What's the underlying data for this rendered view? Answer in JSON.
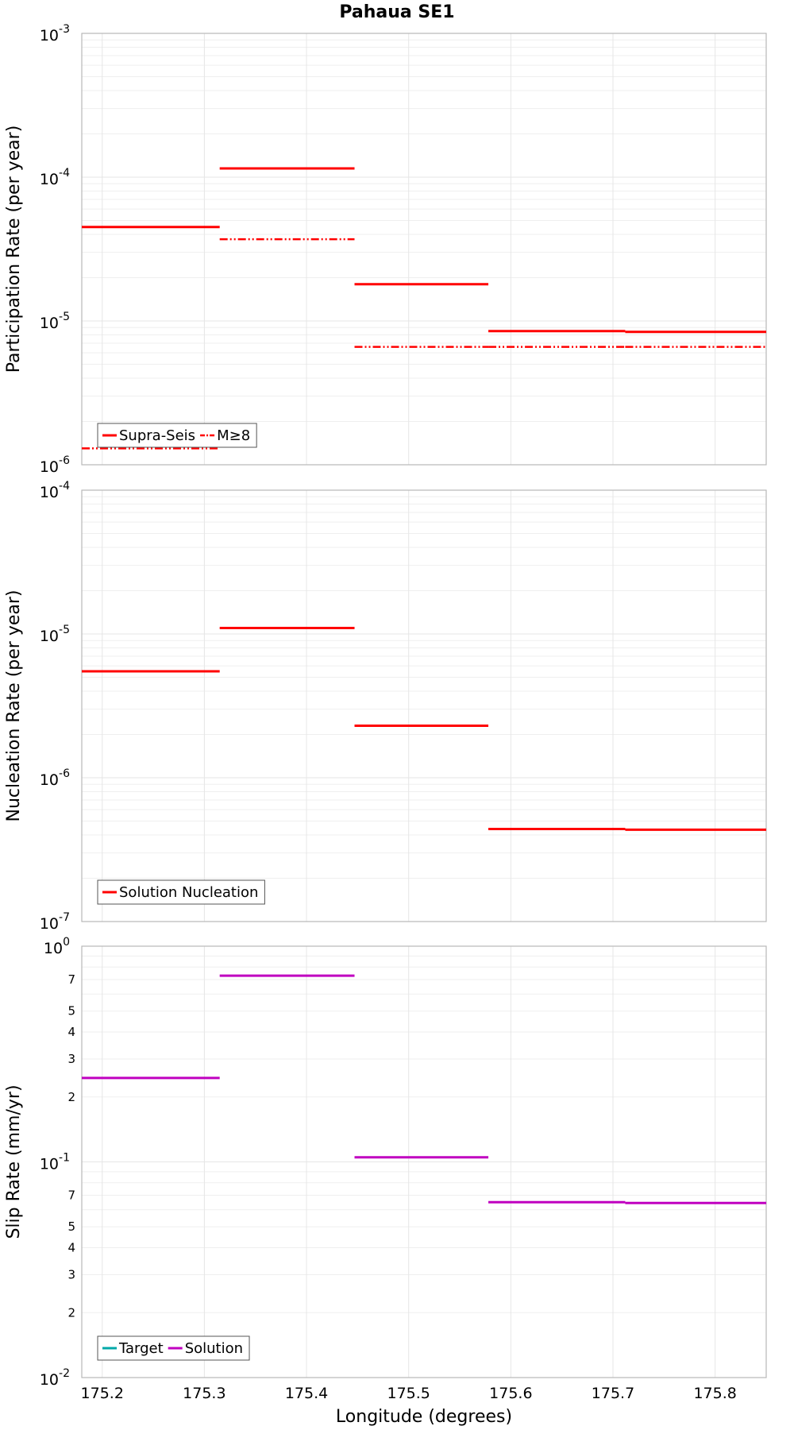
{
  "chart_data": {
    "title": "Pahaua SE1",
    "xlabel": "Longitude (degrees)",
    "xlim": [
      175.18,
      175.85
    ],
    "xticks": [
      "175.2",
      "175.3",
      "175.4",
      "175.5",
      "175.6",
      "175.7",
      "175.8"
    ],
    "colors": {
      "red": "#ff0000",
      "magenta": "#c000c0",
      "teal": "#00a8a8"
    },
    "panels": [
      {
        "type": "line",
        "ylabel": "Participation Rate (per year)",
        "yscale": "log",
        "ylim": [
          1e-06,
          0.001
        ],
        "ytick_labels": [
          {
            "value": 0.001,
            "base": "10",
            "exp": "-3"
          },
          {
            "value": 0.0001,
            "base": "10",
            "exp": "-4"
          },
          {
            "value": 1e-05,
            "base": "10",
            "exp": "-5"
          },
          {
            "value": 1e-06,
            "base": "10",
            "exp": "-6"
          }
        ],
        "minor_labels": [],
        "legend": [
          {
            "name": "Supra-Seis",
            "color": "#ff0000",
            "dash": "solid"
          },
          {
            "name": "M≥8",
            "color": "#ff0000",
            "dash": "dashdot"
          }
        ],
        "series": [
          {
            "name": "Supra-Seis",
            "color": "#ff0000",
            "dash": "solid",
            "segments": [
              {
                "x0": 175.18,
                "x1": 175.315,
                "y": 4.5e-05
              },
              {
                "x0": 175.315,
                "x1": 175.447,
                "y": 0.000115
              },
              {
                "x0": 175.447,
                "x1": 175.578,
                "y": 1.8e-05
              },
              {
                "x0": 175.578,
                "x1": 175.712,
                "y": 8.5e-06
              },
              {
                "x0": 175.712,
                "x1": 175.85,
                "y": 8.4e-06
              }
            ]
          },
          {
            "name": "M≥8",
            "color": "#ff0000",
            "dash": "dashdot",
            "segments": [
              {
                "x0": 175.18,
                "x1": 175.315,
                "y": 1.3e-06
              },
              {
                "x0": 175.315,
                "x1": 175.447,
                "y": 3.7e-05
              },
              {
                "x0": 175.447,
                "x1": 175.578,
                "y": 6.6e-06
              },
              {
                "x0": 175.578,
                "x1": 175.712,
                "y": 6.6e-06
              },
              {
                "x0": 175.712,
                "x1": 175.85,
                "y": 6.6e-06
              }
            ]
          }
        ]
      },
      {
        "type": "line",
        "ylabel": "Nucleation Rate (per year)",
        "yscale": "log",
        "ylim": [
          1e-07,
          0.0001
        ],
        "ytick_labels": [
          {
            "value": 0.0001,
            "base": "10",
            "exp": "-4"
          },
          {
            "value": 1e-05,
            "base": "10",
            "exp": "-5"
          },
          {
            "value": 1e-06,
            "base": "10",
            "exp": "-6"
          },
          {
            "value": 1e-07,
            "base": "10",
            "exp": "-7"
          }
        ],
        "minor_labels": [],
        "legend": [
          {
            "name": "Solution Nucleation",
            "color": "#ff0000",
            "dash": "solid"
          }
        ],
        "series": [
          {
            "name": "Solution Nucleation",
            "color": "#ff0000",
            "dash": "solid",
            "segments": [
              {
                "x0": 175.18,
                "x1": 175.315,
                "y": 5.5e-06
              },
              {
                "x0": 175.315,
                "x1": 175.447,
                "y": 1.1e-05
              },
              {
                "x0": 175.447,
                "x1": 175.578,
                "y": 2.3e-06
              },
              {
                "x0": 175.578,
                "x1": 175.712,
                "y": 4.4e-07
              },
              {
                "x0": 175.712,
                "x1": 175.85,
                "y": 4.35e-07
              }
            ]
          }
        ]
      },
      {
        "type": "line",
        "ylabel": "Slip Rate (mm/yr)",
        "yscale": "log",
        "ylim": [
          0.01,
          1.0
        ],
        "ytick_labels": [
          {
            "value": 1.0,
            "base": "10",
            "exp": "0"
          },
          {
            "value": 0.1,
            "base": "10",
            "exp": "-1"
          },
          {
            "value": 0.01,
            "base": "10",
            "exp": "-2"
          }
        ],
        "minor_labels": [
          {
            "value": 0.7,
            "label": "7"
          },
          {
            "value": 0.5,
            "label": "5"
          },
          {
            "value": 0.4,
            "label": "4"
          },
          {
            "value": 0.3,
            "label": "3"
          },
          {
            "value": 0.2,
            "label": "2"
          },
          {
            "value": 0.07,
            "label": "7"
          },
          {
            "value": 0.05,
            "label": "5"
          },
          {
            "value": 0.04,
            "label": "4"
          },
          {
            "value": 0.03,
            "label": "3"
          },
          {
            "value": 0.02,
            "label": "2"
          }
        ],
        "legend": [
          {
            "name": "Target",
            "color": "#00a8a8",
            "dash": "solid"
          },
          {
            "name": "Solution",
            "color": "#c000c0",
            "dash": "solid"
          }
        ],
        "series": [
          {
            "name": "Solution",
            "color": "#c000c0",
            "dash": "solid",
            "segments": [
              {
                "x0": 175.18,
                "x1": 175.315,
                "y": 0.245
              },
              {
                "x0": 175.315,
                "x1": 175.447,
                "y": 0.73
              },
              {
                "x0": 175.447,
                "x1": 175.578,
                "y": 0.105
              },
              {
                "x0": 175.578,
                "x1": 175.712,
                "y": 0.065
              },
              {
                "x0": 175.712,
                "x1": 175.85,
                "y": 0.0645
              }
            ]
          }
        ]
      }
    ]
  }
}
